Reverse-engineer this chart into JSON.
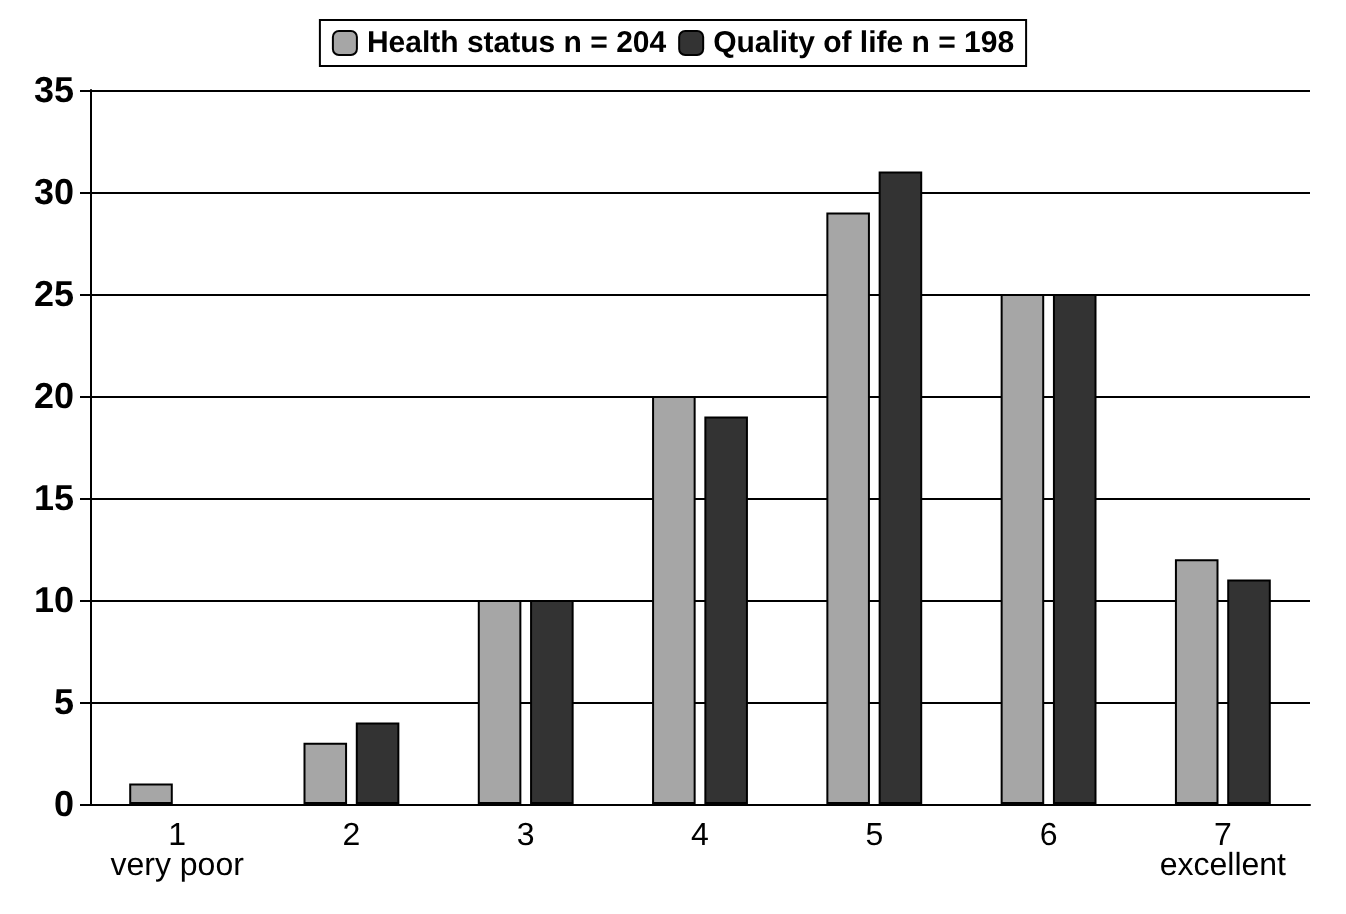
{
  "chart_data": {
    "type": "bar",
    "categories": [
      "1",
      "2",
      "3",
      "4",
      "5",
      "6",
      "7"
    ],
    "series": [
      {
        "name": "Health status n = 204",
        "color": "#a6a6a6",
        "values": [
          1,
          3,
          10,
          20,
          29,
          25,
          12
        ]
      },
      {
        "name": "Quality of life n = 198",
        "color": "#333333",
        "values": [
          0,
          4,
          10,
          19,
          31,
          25,
          11
        ]
      }
    ],
    "ylim": [
      0,
      35
    ],
    "yticks": [
      0,
      5,
      10,
      15,
      20,
      25,
      30,
      35
    ],
    "grid": "y",
    "legend": "top",
    "annotations": [
      "very poor",
      "excellent"
    ]
  }
}
